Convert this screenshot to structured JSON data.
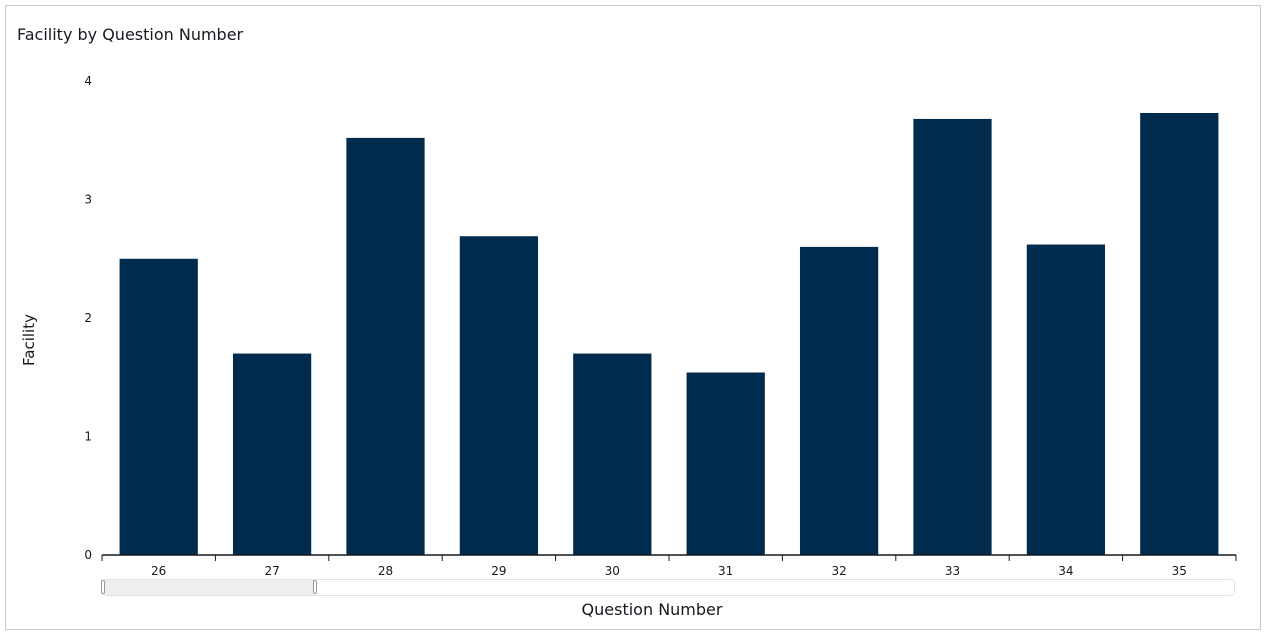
{
  "chart_data": {
    "type": "bar",
    "title": "Facility by Question Number",
    "xlabel": "Question Number",
    "ylabel": "Facility",
    "categories": [
      "26",
      "27",
      "28",
      "29",
      "30",
      "31",
      "32",
      "33",
      "34",
      "35"
    ],
    "values": [
      2.5,
      1.7,
      3.52,
      2.69,
      1.7,
      1.54,
      2.6,
      3.68,
      2.62,
      3.73
    ],
    "ylim": [
      0,
      4
    ],
    "yticks": [
      "0",
      "1",
      "2",
      "3",
      "4"
    ],
    "bar_color": "#002b4c",
    "grid": false,
    "legend": "none"
  },
  "scrollbar": {
    "visible_fraction_start": 0.0,
    "visible_fraction_end": 0.188
  }
}
